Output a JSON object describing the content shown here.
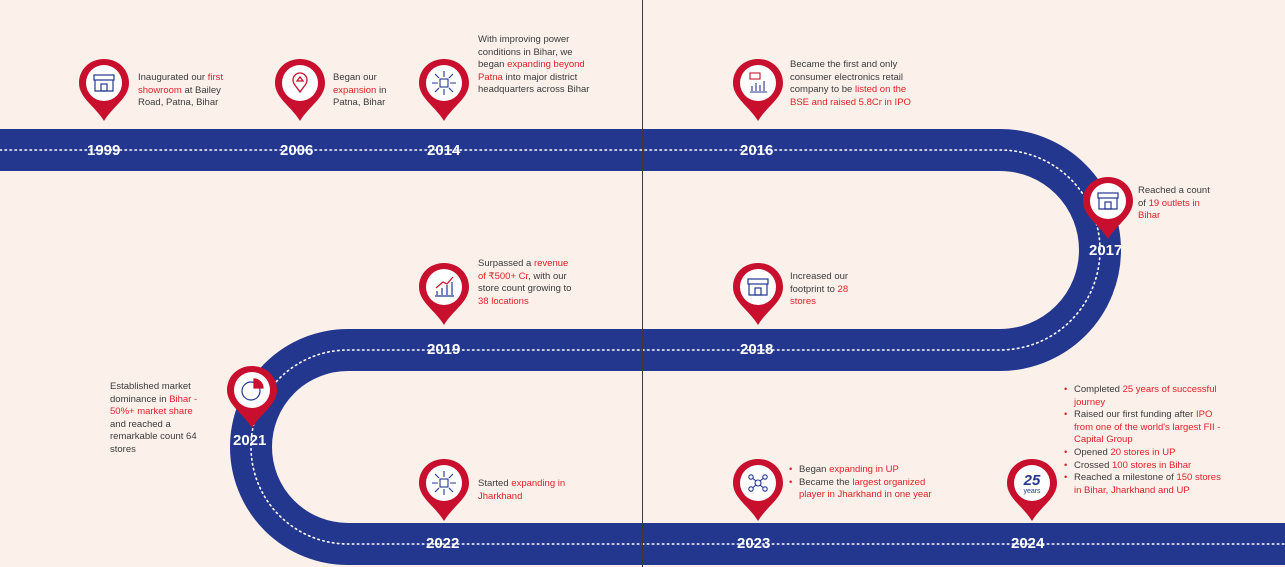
{
  "colors": {
    "road": "#23378f",
    "pin": "#c8102e",
    "accent": "#e32129",
    "background": "#fbf0ea"
  },
  "milestones": [
    {
      "year": "1999",
      "icon": "storefront-icon",
      "segments": [
        [
          "Inaugurated our ",
          false
        ],
        [
          "first showroom",
          true
        ],
        [
          " at Bailey Road, Patna, Bihar",
          false
        ]
      ]
    },
    {
      "year": "2006",
      "icon": "location-pin-icon",
      "segments": [
        [
          "Began our ",
          false
        ],
        [
          "expansion",
          true
        ],
        [
          " in Patna, Bihar",
          false
        ]
      ]
    },
    {
      "year": "2014",
      "icon": "store-expand-icon",
      "segments": [
        [
          "With improving power conditions in Bihar, we began ",
          false
        ],
        [
          "expanding beyond Patna",
          true
        ],
        [
          " into major district headquarters across Bihar",
          false
        ]
      ]
    },
    {
      "year": "2016",
      "icon": "ipo-chart-icon",
      "segments": [
        [
          "Became the first and only consumer electronics retail company to be ",
          false
        ],
        [
          "listed on the BSE and raised 5.8Cr in IPO",
          true
        ]
      ]
    },
    {
      "year": "2017",
      "icon": "storefront-icon",
      "segments": [
        [
          "Reached a count of ",
          false
        ],
        [
          "19 outlets in Bihar",
          true
        ]
      ]
    },
    {
      "year": "2018",
      "icon": "storefront-icon",
      "segments": [
        [
          "Increased our footprint to ",
          false
        ],
        [
          "28 stores",
          true
        ]
      ]
    },
    {
      "year": "2019",
      "icon": "growth-chart-icon",
      "segments": [
        [
          "Surpassed a ",
          false
        ],
        [
          "revenue of ₹500+ Cr",
          true
        ],
        [
          ", with our store count growing to ",
          false
        ],
        [
          "38 locations",
          true
        ]
      ]
    },
    {
      "year": "2021",
      "icon": "pie-chart-icon",
      "segments": [
        [
          "Established market dominance in ",
          false
        ],
        [
          "Bihar - 50%+ market share",
          true
        ],
        [
          " and reached a remarkable count 64 stores",
          false
        ]
      ]
    },
    {
      "year": "2022",
      "icon": "store-expand-icon",
      "segments": [
        [
          "Started ",
          false
        ],
        [
          "expanding in Jharkhand",
          true
        ]
      ]
    },
    {
      "year": "2023",
      "icon": "people-network-icon",
      "bullets": [
        [
          [
            "Began ",
            false
          ],
          [
            "expanding in UP",
            true
          ]
        ],
        [
          [
            "Became the ",
            false
          ],
          [
            "largest organized player in Jharkhand in one year",
            true
          ]
        ]
      ]
    },
    {
      "year": "2024",
      "icon": "25-years-badge-icon",
      "badge_number": "25",
      "badge_text": "years",
      "bullets": [
        [
          [
            "Completed ",
            false
          ],
          [
            "25 years of successful journey",
            true
          ]
        ],
        [
          [
            "Raised our first funding after ",
            false
          ],
          [
            "IPO from one of the world's largest FII - Capital Group",
            true
          ]
        ],
        [
          [
            "Opened ",
            false
          ],
          [
            "20 stores in UP",
            true
          ]
        ],
        [
          [
            "Crossed ",
            false
          ],
          [
            "100 stores in Bihar",
            true
          ]
        ],
        [
          [
            "Reached a milestone of ",
            false
          ],
          [
            "150 stores in Bihar, Jharkhand and UP",
            true
          ]
        ]
      ]
    }
  ]
}
